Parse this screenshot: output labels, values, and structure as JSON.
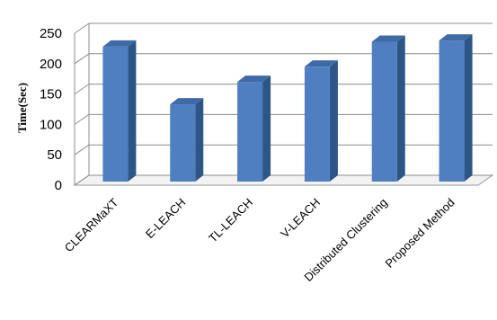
{
  "chart_data": {
    "type": "bar",
    "style": "3d-column",
    "title": "",
    "xlabel": "",
    "ylabel": "Time(Sec)",
    "categories": [
      "CLEARMaXT",
      "E-LEACH",
      "TL-LEACH",
      "V-LEACH",
      "Distributed Clustering",
      "Proposed Method"
    ],
    "values": [
      228,
      133,
      170,
      195,
      236,
      238
    ],
    "ylim": [
      0,
      250
    ],
    "yticks": [
      "0",
      "50",
      "100",
      "150",
      "200",
      "250"
    ],
    "grid": true,
    "legend": "none",
    "bar_color": "#4f7ec1",
    "bar_side_color": "#2d5688",
    "bar_top_color": "#3f6aa8"
  }
}
